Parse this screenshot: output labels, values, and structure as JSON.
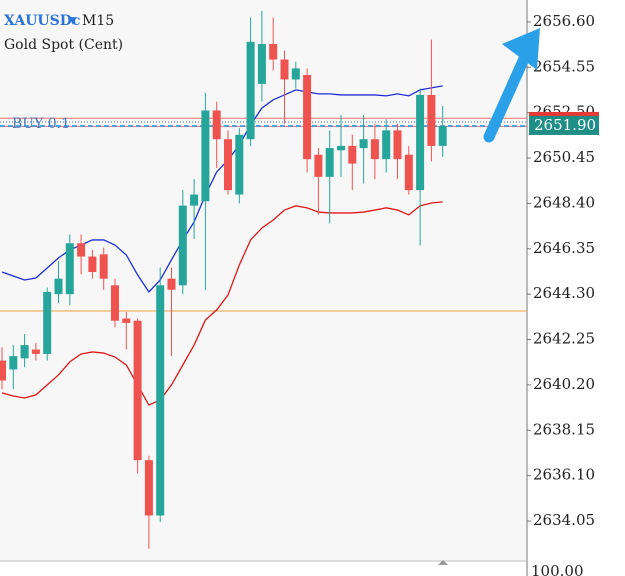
{
  "header": {
    "symbol": "XAUUSDc",
    "timeframe": "M15",
    "description": "Gold Spot (Cent)"
  },
  "sub_window_label": "100.00",
  "chart_data": {
    "type": "candlestick",
    "up_color": "#26a69a",
    "down_color": "#ef5350",
    "open": [
      2641.3,
      2640.9,
      2641.4,
      2641.8,
      2641.6,
      2644.3,
      2644.3,
      2646.6,
      2646.0,
      2646.1,
      2644.7,
      2643.2,
      2643.1,
      2636.8,
      2634.3,
      2645.0,
      2644.7,
      2648.3,
      2648.5,
      2652.6,
      2651.3,
      2648.8,
      2651.3,
      2653.8,
      2655.6,
      2654.9,
      2654.0,
      2654.2,
      2650.6,
      2649.6,
      2650.8,
      2651.0,
      2650.9,
      2651.3,
      2650.4,
      2651.7,
      2650.6,
      2649.0,
      2653.3,
      2651.0
    ],
    "high": [
      2641.9,
      2642.0,
      2642.5,
      2642.1,
      2644.6,
      2645.8,
      2647.0,
      2647.0,
      2646.3,
      2646.4,
      2645.0,
      2643.5,
      2643.2,
      2637.0,
      2645.5,
      2645.5,
      2649.0,
      2649.5,
      2653.4,
      2653.0,
      2651.7,
      2651.8,
      2656.8,
      2657.1,
      2656.8,
      2655.3,
      2654.8,
      2654.5,
      2650.9,
      2651.7,
      2652.4,
      2651.5,
      2652.4,
      2652.0,
      2652.2,
      2652.0,
      2651.0,
      2653.6,
      2655.8,
      2652.8
    ],
    "low": [
      2640.0,
      2640.0,
      2641.0,
      2641.3,
      2641.3,
      2643.9,
      2643.8,
      2645.2,
      2645.0,
      2644.5,
      2642.8,
      2641.8,
      2636.2,
      2632.8,
      2634.0,
      2641.5,
      2644.3,
      2646.8,
      2644.5,
      2650.0,
      2648.8,
      2648.4,
      2651.0,
      2653.0,
      2654.4,
      2652.0,
      2653.6,
      2649.8,
      2647.9,
      2647.5,
      2649.6,
      2649.0,
      2649.3,
      2649.5,
      2649.8,
      2649.5,
      2648.8,
      2646.5,
      2650.3,
      2650.5
    ],
    "close": [
      2640.4,
      2641.5,
      2642.0,
      2641.6,
      2644.4,
      2645.0,
      2646.6,
      2646.0,
      2645.3,
      2645.0,
      2643.1,
      2643.0,
      2636.8,
      2634.3,
      2644.7,
      2644.5,
      2648.3,
      2648.8,
      2652.6,
      2651.3,
      2649.0,
      2651.5,
      2655.7,
      2655.6,
      2654.9,
      2654.0,
      2654.5,
      2650.4,
      2649.6,
      2650.9,
      2651.0,
      2650.2,
      2651.3,
      2650.4,
      2651.7,
      2650.4,
      2649.0,
      2653.3,
      2651.0,
      2651.9
    ],
    "bands": [
      {
        "color": "#1f2fd6",
        "values": [
          2645.3,
          2645.12,
          2644.94,
          2645.03,
          2645.48,
          2645.94,
          2646.3,
          2646.52,
          2646.75,
          2646.75,
          2646.52,
          2646.07,
          2645.17,
          2644.4,
          2644.94,
          2645.85,
          2646.75,
          2647.56,
          2648.78,
          2649.82,
          2650.36,
          2651.04,
          2651.95,
          2652.71,
          2653.08,
          2653.3,
          2653.53,
          2653.44,
          2653.35,
          2653.35,
          2653.3,
          2653.3,
          2653.3,
          2653.3,
          2653.26,
          2653.35,
          2653.26,
          2653.53,
          2653.62,
          2653.71
        ]
      },
      {
        "color": "#e01818",
        "values": [
          2639.84,
          2639.7,
          2639.61,
          2639.75,
          2640.2,
          2640.65,
          2641.24,
          2641.6,
          2641.69,
          2641.64,
          2641.46,
          2641.1,
          2640.2,
          2639.29,
          2639.52,
          2640.2,
          2641.1,
          2642.0,
          2643.13,
          2643.59,
          2644.26,
          2645.62,
          2646.75,
          2647.29,
          2647.65,
          2648.1,
          2648.29,
          2648.2,
          2648.01,
          2647.97,
          2647.97,
          2647.97,
          2648.01,
          2648.1,
          2648.2,
          2648.1,
          2647.88,
          2648.29,
          2648.42,
          2648.47
        ]
      }
    ],
    "order": {
      "label": "BUY 0.1",
      "value": 2652.08,
      "color": "#4a78b8"
    },
    "levels": [
      {
        "value": 2652.25,
        "color": "#e57373"
      },
      {
        "value": 2651.88,
        "color": "#e57373"
      },
      {
        "value": 2643.54,
        "color": "#f0a040"
      }
    ],
    "bid": {
      "value": 2651.9,
      "label": "2651.90",
      "color": "#2a8fd8"
    },
    "ylim": [
      2632.29,
      2657.59
    ],
    "yticks": [
      {
        "value": 2656.6,
        "label": "2656.60"
      },
      {
        "value": 2654.55,
        "label": "2654.55"
      },
      {
        "value": 2652.5,
        "label": "2652.50"
      },
      {
        "value": 2650.45,
        "label": "2650.45"
      },
      {
        "value": 2648.4,
        "label": "2648.40"
      },
      {
        "value": 2646.35,
        "label": "2646.35"
      },
      {
        "value": 2644.3,
        "label": "2644.30"
      },
      {
        "value": 2642.25,
        "label": "2642.25"
      },
      {
        "value": 2640.2,
        "label": "2640.20"
      },
      {
        "value": 2638.15,
        "label": "2638.15"
      },
      {
        "value": 2636.1,
        "label": "2636.10"
      },
      {
        "value": 2634.05,
        "label": "2634.05"
      }
    ]
  }
}
